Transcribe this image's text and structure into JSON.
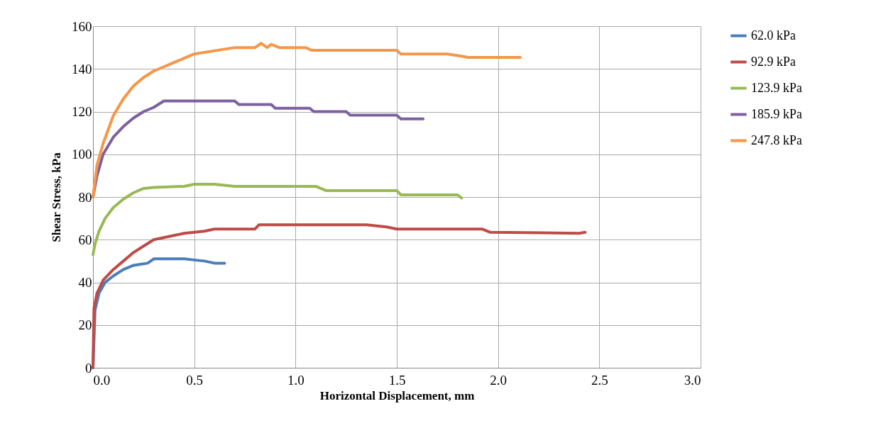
{
  "chart_data": {
    "type": "line",
    "xlabel": "Horizontal Displacement, mm",
    "ylabel": "Shear Stress, kPa",
    "xlim": [
      0,
      3
    ],
    "ylim": [
      0,
      160
    ],
    "xticks": [
      {
        "value": 0,
        "label": "0.0"
      },
      {
        "value": 0.5,
        "label": "0.5"
      },
      {
        "value": 1,
        "label": "1.0"
      },
      {
        "value": 1.5,
        "label": "1.5"
      },
      {
        "value": 2,
        "label": "2.0"
      },
      {
        "value": 2.5,
        "label": "2.5"
      },
      {
        "value": 3,
        "label": "3.0"
      }
    ],
    "yticks": [
      0,
      20,
      40,
      60,
      80,
      100,
      120,
      140,
      160
    ],
    "grid": true,
    "legend": "right",
    "marker": "none",
    "line_style": "solid",
    "series": [
      {
        "name": "62.0 kPa",
        "color": "#4a7ebb",
        "x": [
          0,
          0.01,
          0.03,
          0.06,
          0.1,
          0.15,
          0.2,
          0.27,
          0.3,
          0.45,
          0.5,
          0.55,
          0.6,
          0.65
        ],
        "values": [
          0,
          27,
          35,
          40,
          43,
          46,
          48,
          49,
          51,
          51,
          50.5,
          50,
          49,
          49
        ]
      },
      {
        "name": "92.9 kPa",
        "color": "#be4b48",
        "x": [
          0,
          0.005,
          0.02,
          0.05,
          0.1,
          0.15,
          0.2,
          0.25,
          0.3,
          0.35,
          0.4,
          0.45,
          0.55,
          0.6,
          0.8,
          0.82,
          1.35,
          1.45,
          1.5,
          1.92,
          1.96,
          2.4,
          2.43
        ],
        "values": [
          0,
          28,
          35,
          41,
          46,
          50,
          54,
          57,
          60,
          61,
          62,
          63,
          64,
          65,
          65,
          67,
          67,
          66,
          65,
          65,
          63.5,
          63,
          63.5
        ]
      },
      {
        "name": "123.9 kPa",
        "color": "#98b954",
        "x": [
          0,
          0.01,
          0.03,
          0.06,
          0.1,
          0.15,
          0.2,
          0.25,
          0.3,
          0.45,
          0.5,
          0.6,
          0.7,
          1.1,
          1.15,
          1.5,
          1.52,
          1.8,
          1.82
        ],
        "values": [
          53,
          58,
          64,
          70,
          75,
          79,
          82,
          84,
          84.5,
          85,
          86,
          86,
          85,
          85,
          83,
          83,
          81,
          81,
          79.5
        ]
      },
      {
        "name": "185.9 kPa",
        "color": "#7d60a0",
        "x": [
          0,
          0.02,
          0.05,
          0.1,
          0.15,
          0.2,
          0.25,
          0.3,
          0.35,
          0.7,
          0.72,
          0.88,
          0.9,
          1.07,
          1.09,
          1.25,
          1.27,
          1.5,
          1.52,
          1.63
        ],
        "values": [
          80,
          90,
          100,
          108,
          113,
          117,
          120,
          122,
          125,
          125,
          123.3,
          123.3,
          121.6,
          121.6,
          120,
          120,
          118.3,
          118.3,
          116.6,
          116.6
        ]
      },
      {
        "name": "247.8 kPa",
        "color": "#f79646",
        "x": [
          0,
          0.02,
          0.05,
          0.1,
          0.15,
          0.2,
          0.25,
          0.3,
          0.35,
          0.4,
          0.45,
          0.5,
          0.6,
          0.7,
          0.8,
          0.83,
          0.86,
          0.88,
          0.92,
          1.05,
          1.08,
          1.5,
          1.52,
          1.75,
          1.82,
          1.85,
          2.11
        ],
        "values": [
          80,
          95,
          105,
          118,
          126,
          132,
          136,
          139,
          141,
          143,
          145,
          147,
          148.5,
          150,
          150,
          152,
          150,
          151.5,
          150,
          150,
          148.7,
          148.7,
          147,
          147,
          146,
          145.4,
          145.4
        ]
      }
    ]
  }
}
